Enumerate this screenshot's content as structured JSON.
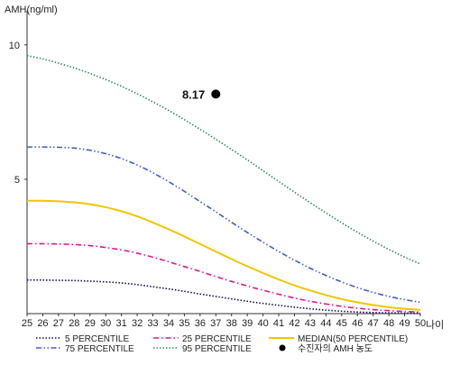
{
  "chart_data": {
    "type": "line",
    "ylabel": "AMH(ng/ml)",
    "xlabel": "나이",
    "xlim": [
      25,
      50
    ],
    "ylim": [
      0,
      11
    ],
    "x_ticks": [
      25,
      26,
      27,
      28,
      29,
      30,
      31,
      32,
      33,
      34,
      35,
      36,
      37,
      38,
      39,
      40,
      41,
      42,
      43,
      44,
      45,
      46,
      47,
      48,
      49,
      50
    ],
    "y_ticks": [
      5,
      10
    ],
    "x": [
      25,
      26,
      27,
      28,
      29,
      30,
      31,
      32,
      33,
      34,
      35,
      36,
      37,
      38,
      39,
      40,
      41,
      42,
      43,
      44,
      45,
      46,
      47,
      48,
      49,
      50
    ],
    "series": [
      {
        "name": "5 PERCENTILE",
        "color": "#0b0b5a",
        "dash": "dotted",
        "values": [
          1.25,
          1.25,
          1.24,
          1.23,
          1.21,
          1.18,
          1.14,
          1.08,
          1.0,
          0.92,
          0.83,
          0.73,
          0.64,
          0.55,
          0.46,
          0.38,
          0.31,
          0.24,
          0.18,
          0.13,
          0.09,
          0.06,
          0.04,
          0.03,
          0.02,
          0.02
        ]
      },
      {
        "name": "25 PERCENTILE",
        "color": "#e0168c",
        "dash": "dashdot",
        "values": [
          2.6,
          2.6,
          2.59,
          2.57,
          2.53,
          2.46,
          2.37,
          2.25,
          2.1,
          1.93,
          1.75,
          1.57,
          1.38,
          1.2,
          1.03,
          0.87,
          0.72,
          0.58,
          0.46,
          0.36,
          0.27,
          0.2,
          0.15,
          0.11,
          0.08,
          0.06
        ]
      },
      {
        "name": "MEDIAN(50 PERCENTILE)",
        "color": "#f2c500",
        "dash": "solid",
        "values": [
          4.2,
          4.2,
          4.18,
          4.14,
          4.07,
          3.96,
          3.81,
          3.62,
          3.39,
          3.14,
          2.87,
          2.59,
          2.31,
          2.03,
          1.76,
          1.51,
          1.27,
          1.05,
          0.86,
          0.69,
          0.54,
          0.42,
          0.32,
          0.24,
          0.18,
          0.14
        ]
      },
      {
        "name": "75 PERCENTILE",
        "color": "#3b5fc8",
        "dash": "dashdotdot",
        "values": [
          6.2,
          6.2,
          6.19,
          6.16,
          6.08,
          5.95,
          5.77,
          5.53,
          5.24,
          4.91,
          4.55,
          4.17,
          3.79,
          3.4,
          3.02,
          2.66,
          2.31,
          1.99,
          1.69,
          1.42,
          1.18,
          0.97,
          0.79,
          0.64,
          0.52,
          0.42
        ]
      },
      {
        "name": "95 PERCENTILE",
        "color": "#2e8b57",
        "dash": "dotted",
        "values": [
          9.6,
          9.48,
          9.32,
          9.14,
          8.94,
          8.71,
          8.46,
          8.18,
          7.88,
          7.56,
          7.22,
          6.86,
          6.49,
          6.11,
          5.72,
          5.32,
          4.92,
          4.52,
          4.13,
          3.75,
          3.38,
          3.03,
          2.7,
          2.39,
          2.1,
          1.85
        ]
      }
    ],
    "marker": {
      "name": "수진자의 AMH 농도",
      "x": 37,
      "y": 8.17,
      "label": "8.17",
      "color": "#000000"
    },
    "legend": {
      "placement": "bottom",
      "items": [
        "5 PERCENTILE",
        "25 PERCENTILE",
        "MEDIAN(50 PERCENTILE)",
        "75 PERCENTILE",
        "95 PERCENTILE",
        "수진자의 AMH 농도"
      ]
    },
    "grid": false
  }
}
